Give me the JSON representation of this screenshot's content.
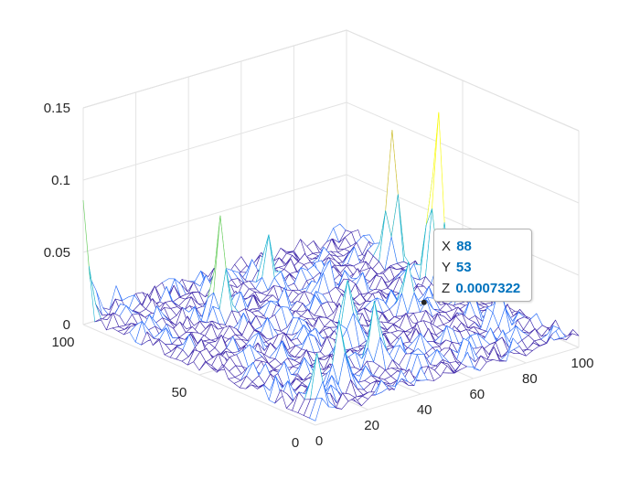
{
  "chart_data": {
    "type": "surface-mesh",
    "title": "",
    "xlabel": "",
    "ylabel": "",
    "zlabel": "",
    "xlim": [
      0,
      100
    ],
    "ylim": [
      0,
      100
    ],
    "zlim": [
      0,
      0.15
    ],
    "x_ticks": [
      "0",
      "20",
      "40",
      "60",
      "80",
      "100"
    ],
    "y_ticks": [
      "0",
      "50",
      "100"
    ],
    "z_ticks": [
      "0",
      "0.05",
      "0.1",
      "0.15"
    ],
    "grid": true,
    "colormap": [
      "#3e26a8",
      "#2c6ff9",
      "#17b2d0",
      "#65cc5a",
      "#cbbd2d",
      "#f9fb15"
    ],
    "peaks": [
      {
        "x": 97,
        "y": 58,
        "z": 0.13
      },
      {
        "x": 97,
        "y": 77,
        "z": 0.095
      },
      {
        "x": 0,
        "y": 100,
        "z": 0.08
      },
      {
        "x": 30,
        "y": 75,
        "z": 0.065
      },
      {
        "x": 55,
        "y": 83,
        "z": 0.04
      },
      {
        "x": 64,
        "y": 68,
        "z": 0.035
      },
      {
        "x": 48,
        "y": 40,
        "z": 0.04
      },
      {
        "x": 40,
        "y": 20,
        "z": 0.04
      },
      {
        "x": 75,
        "y": 45,
        "z": 0.035
      },
      {
        "x": 88,
        "y": 20,
        "z": 0.03
      },
      {
        "x": 20,
        "y": 12,
        "z": 0.045
      },
      {
        "x": 5,
        "y": 5,
        "z": 0.04
      }
    ],
    "datatip": {
      "x_label": "X",
      "x_value": "88",
      "y_label": "Y",
      "y_value": "53",
      "z_label": "Z",
      "z_value": "0.0007322"
    }
  }
}
